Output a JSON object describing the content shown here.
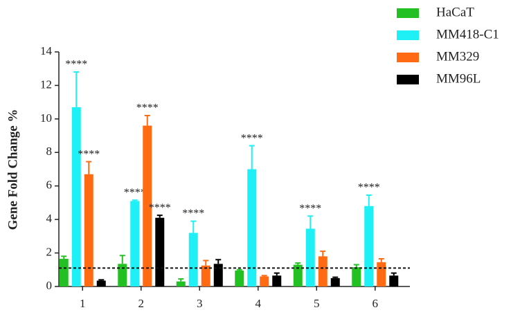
{
  "chart_data": {
    "type": "bar",
    "y_label": "Gene Fold Change %",
    "categories": [
      "1",
      "2",
      "3",
      "4",
      "5",
      "6"
    ],
    "series": [
      {
        "name": "HaCaT",
        "color": "#22c022",
        "values": [
          1.65,
          1.35,
          0.3,
          0.95,
          1.3,
          1.15
        ],
        "errors": [
          0.15,
          0.5,
          0.15,
          0.05,
          0.1,
          0.15
        ],
        "annotations": [
          null,
          null,
          null,
          null,
          null,
          null
        ]
      },
      {
        "name": "MM418-C1",
        "color": "#1ff0f5",
        "values": [
          10.7,
          5.1,
          3.2,
          7.0,
          3.45,
          4.8
        ],
        "errors": [
          2.1,
          0.05,
          0.7,
          1.4,
          0.75,
          0.65
        ],
        "annotations": [
          "****",
          "****",
          "****",
          "****",
          "****",
          "****"
        ]
      },
      {
        "name": "MM329",
        "color": "#ff6a13",
        "values": [
          6.7,
          9.6,
          1.25,
          0.6,
          1.8,
          1.45
        ],
        "errors": [
          0.75,
          0.6,
          0.3,
          0.05,
          0.3,
          0.2
        ],
        "annotations": [
          "****",
          "****",
          null,
          null,
          null,
          null
        ]
      },
      {
        "name": "MM96L",
        "color": "#000000",
        "values": [
          0.35,
          4.1,
          1.35,
          0.65,
          0.5,
          0.65
        ],
        "errors": [
          0.05,
          0.15,
          0.25,
          0.15,
          0.05,
          0.15
        ],
        "annotations": [
          null,
          "****",
          null,
          null,
          null,
          null
        ]
      }
    ],
    "reference_line": 1.1,
    "ylim": [
      0,
      14
    ],
    "yticks": [
      0,
      2,
      4,
      6,
      8,
      10,
      12,
      14
    ]
  }
}
